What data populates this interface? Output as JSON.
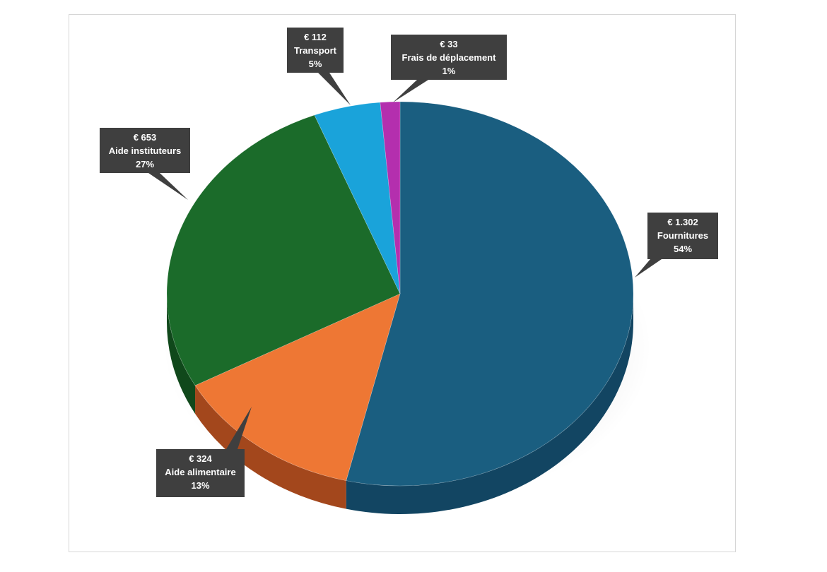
{
  "chart_data": {
    "type": "pie",
    "style": "3d-tilted",
    "currency": "€",
    "slices": [
      {
        "label": "Fournitures",
        "value": 1302,
        "value_text": "€ 1.302",
        "percent_text": "54%",
        "color": "#1a5e80",
        "side_color": "#124562"
      },
      {
        "label": "Aide alimentaire",
        "value": 324,
        "value_text": "€ 324",
        "percent_text": "13%",
        "color": "#ee7734",
        "side_color": "#a3471c"
      },
      {
        "label": "Aide instituteurs",
        "value": 653,
        "value_text": "€ 653",
        "percent_text": "27%",
        "color": "#1b6b2a",
        "side_color": "#10481b"
      },
      {
        "label": "Transport",
        "value": 112,
        "value_text": "€ 112",
        "percent_text": "5%",
        "color": "#1aa3da",
        "side_color": "#127399"
      },
      {
        "label": "Frais de déplacement",
        "value": 33,
        "value_text": "€ 33",
        "percent_text": "1%",
        "color": "#b42fae",
        "side_color": "#7a1f76"
      }
    ],
    "data_labels": "callouts-dark",
    "callout_color": "#3f3f3f",
    "legend": "none"
  }
}
